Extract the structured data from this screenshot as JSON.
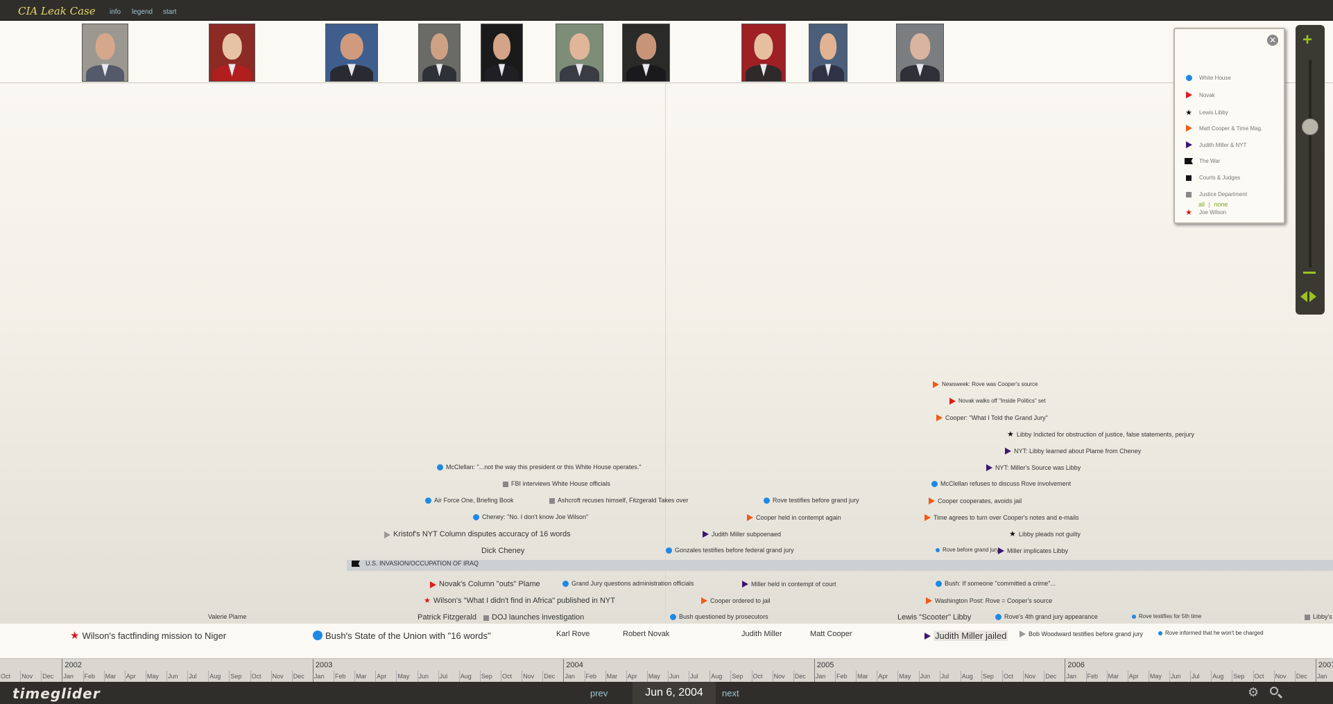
{
  "app": {
    "title": "CIA Leak Case"
  },
  "top_links": [
    {
      "label": "info"
    },
    {
      "label": "legend"
    },
    {
      "label": "start"
    }
  ],
  "people_photos": [
    {
      "name": "Joe Wilson",
      "bg": "#9a9890",
      "skin": "#d5a88c",
      "suit": "#545a6a"
    },
    {
      "name": "Valerie Plame",
      "bg": "#8c2a25",
      "skin": "#e7c3a5",
      "suit": "#b21d1d"
    },
    {
      "name": "George W. Bush",
      "bg": "#3f5e8e",
      "skin": "#cf9b7c",
      "suit": "#2a2a33"
    },
    {
      "name": "Patrick Fitzgerald",
      "bg": "#6a6a66",
      "skin": "#cfa184",
      "suit": "#2e3138"
    },
    {
      "name": "Dick Cheney",
      "bg": "#1a1a1a",
      "skin": "#d3a487",
      "suit": "#1f1f24"
    },
    {
      "name": "Karl Rove",
      "bg": "#7d8d78",
      "skin": "#e0b59a",
      "suit": "#393b45"
    },
    {
      "name": "Robert Novak",
      "bg": "#2a2a28",
      "skin": "#c79478",
      "suit": "#1a1a1c"
    },
    {
      "name": "Judith Miller",
      "bg": "#9e1f24",
      "skin": "#e6bea0",
      "suit": "#2e2a2a"
    },
    {
      "name": "Matt Cooper",
      "bg": "#4b5f7a",
      "skin": "#e1b393",
      "suit": "#2e3244"
    },
    {
      "name": "Lewis Scooter Libby",
      "bg": "#7a7e80",
      "skin": "#d9b4a0",
      "suit": "#303038"
    }
  ],
  "legend": {
    "close_glyph": "✕",
    "items": [
      {
        "label": "White House",
        "icon": "blue-dot-icon"
      },
      {
        "label": "Novak",
        "icon": "red-triangle-icon"
      },
      {
        "label": "Lewis Libby",
        "icon": "black-star-icon"
      },
      {
        "label": "Matt Cooper & Time Mag.",
        "icon": "orange-triangle-icon"
      },
      {
        "label": "Judith Miller & NYT",
        "icon": "purple-triangle-icon"
      },
      {
        "label": "The War",
        "icon": "black-flag-icon"
      },
      {
        "label": "Courts & Judges",
        "icon": "black-square-icon"
      },
      {
        "label": "Justice Department",
        "icon": "grey-square-icon"
      },
      {
        "label": "Joe Wilson",
        "icon": "red-star-icon"
      }
    ],
    "all": "all",
    "sep": "|",
    "none": "none"
  },
  "war_band": {
    "label": "U.S. INVASION/OCCUPATION OF IRAQ"
  },
  "events": [
    {
      "text": "Newsweek: Rove was Cooper's source",
      "icon": "orange-triangle-icon",
      "size": "s7"
    },
    {
      "text": "Novak walks off \"Inside Politics\" set",
      "icon": "red-triangle-icon",
      "size": "s7"
    },
    {
      "text": "Cooper: \"What I Told the Grand Jury\"",
      "icon": "orange-triangle-icon",
      "size": "s9"
    },
    {
      "text": "Libby Indicted for obstruction of justice, false statements, perjury",
      "icon": "black-star-icon",
      "size": "s9"
    },
    {
      "text": "NYT: Libby learned about Plame from Cheney",
      "icon": "purple-triangle-icon",
      "size": "s9"
    },
    {
      "text": "NYT: Miller's Source was Libby",
      "icon": "purple-triangle-icon",
      "size": "s9"
    },
    {
      "text": "McClellan: \"...not the way this president or this White House operates.\"",
      "icon": "blue-dot-icon",
      "size": "s9"
    },
    {
      "text": "FBI interviews White House officials",
      "icon": "grey-square-icon",
      "size": "s9"
    },
    {
      "text": "McClellan refuses to discuss Rove involvement",
      "icon": "blue-dot-icon",
      "size": "s9"
    },
    {
      "text": "Air Force One, Briefing Book",
      "icon": "blue-dot-icon",
      "size": "s9"
    },
    {
      "text": "Ashcroft recuses himself, Fitzgerald Takes over",
      "icon": "grey-square-icon",
      "size": "s9"
    },
    {
      "text": "Rove testifies before grand jury",
      "icon": "blue-dot-icon",
      "size": "s9"
    },
    {
      "text": "Cooper cooperates, avoids jail",
      "icon": "orange-triangle-icon",
      "size": "s9"
    },
    {
      "text": "Cheney: \"No. I don't know Joe Wilson\"",
      "icon": "blue-dot-icon",
      "size": "s9"
    },
    {
      "text": "Cooper held in contempt again",
      "icon": "orange-triangle-icon",
      "size": "s9"
    },
    {
      "text": "Time agrees to turn over Cooper's notes and e-mails",
      "icon": "orange-triangle-icon",
      "size": "s9"
    },
    {
      "text": "Kristof's NYT Column disputes accuracy of 16 words",
      "icon": "grey-triangle-icon",
      "size": "s10"
    },
    {
      "text": "Judith Miller subpoenaed",
      "icon": "purple-triangle-icon",
      "size": "s9"
    },
    {
      "text": "Libby pleads not guilty",
      "icon": "black-star-icon",
      "size": "s9"
    },
    {
      "text": "Dick Cheney",
      "icon": "",
      "size": "s10"
    },
    {
      "text": "Gonzales testifies before federal grand jury",
      "icon": "blue-dot-icon",
      "size": "s9"
    },
    {
      "text": "Rove before grand jury",
      "icon": "blue-dot-icon",
      "size": "s7"
    },
    {
      "text": "Miller implicates Libby",
      "icon": "purple-triangle-icon",
      "size": "s9"
    },
    {
      "text": "Novak's Column \"outs\" Plame",
      "icon": "red-triangle-icon",
      "size": "s10"
    },
    {
      "text": "Grand Jury questions administration officials",
      "icon": "blue-dot-icon",
      "size": "s9"
    },
    {
      "text": "Miller held in contempt of court",
      "icon": "purple-triangle-icon",
      "size": "s9"
    },
    {
      "text": "Bush: If someone \"committed a crime\"...",
      "icon": "blue-dot-icon",
      "size": "s9"
    },
    {
      "text": "Wilson's \"What I didn't find in Africa\" published in NYT",
      "icon": "red-star-icon",
      "size": "s10"
    },
    {
      "text": "Cooper ordered to jail",
      "icon": "orange-triangle-icon",
      "size": "s9"
    },
    {
      "text": "Washington Post: Rove = Cooper's source",
      "icon": "orange-triangle-icon",
      "size": "s9"
    },
    {
      "text": "Valerie Plame",
      "icon": "",
      "size": "s9"
    },
    {
      "text": "Patrick Fitzgerald",
      "icon": "",
      "size": "s10"
    },
    {
      "text": "DOJ launches investigation",
      "icon": "grey-square-icon",
      "size": "s10"
    },
    {
      "text": "Bush questioned by prosecutors",
      "icon": "blue-dot-icon",
      "size": "s9"
    },
    {
      "text": "Lewis \"Scooter\" Libby",
      "icon": "",
      "size": "s10"
    },
    {
      "text": "Rove's 4th grand jury appearance",
      "icon": "blue-dot-icon",
      "size": "s9"
    },
    {
      "text": "Rove testifies for 5th time",
      "icon": "blue-dot-icon",
      "size": "s7"
    },
    {
      "text": "Libby's",
      "icon": "grey-square-icon",
      "size": "s9"
    },
    {
      "text": "Wilson's factfinding mission to Niger",
      "icon": "red-star-icon",
      "size": "s13"
    },
    {
      "text": "Bush's State of the Union with \"16 words\"",
      "icon": "blue-dot-icon",
      "size": "s13"
    },
    {
      "text": "Karl Rove",
      "icon": "",
      "size": "s10"
    },
    {
      "text": "Robert Novak",
      "icon": "",
      "size": "s10"
    },
    {
      "text": "Judith Miller",
      "icon": "",
      "size": "s10"
    },
    {
      "text": "Matt Cooper",
      "icon": "",
      "size": "s10"
    },
    {
      "text": "Judith Miller jailed",
      "icon": "purple-triangle-icon",
      "size": "s13"
    },
    {
      "text": "Bob Woodward testifies before grand jury",
      "icon": "grey-triangle-icon",
      "size": "s9"
    },
    {
      "text": "Rove informed that he won't be charged",
      "icon": "blue-dot-icon",
      "size": "s7"
    }
  ],
  "ruler": {
    "years": [
      "2002",
      "2003",
      "2004",
      "2005",
      "2006",
      "2007"
    ],
    "months": [
      "Oct",
      "Nov",
      "Dec",
      "Jan",
      "Feb",
      "Mar",
      "Apr",
      "May",
      "Jun",
      "Jul",
      "Aug",
      "Sep",
      "Oct",
      "Nov",
      "Dec",
      "Jan",
      "Feb",
      "Mar",
      "Apr",
      "May",
      "Jun",
      "Jul",
      "Aug",
      "Sep",
      "Oct",
      "Nov",
      "Dec",
      "Jan",
      "Feb",
      "Mar",
      "Apr",
      "May",
      "Jun",
      "Jul",
      "Aug",
      "Sep",
      "Oct",
      "Nov",
      "Dec",
      "Jan",
      "Feb",
      "Mar",
      "Apr",
      "May",
      "Jun",
      "Jul",
      "Aug",
      "Sep",
      "Oct",
      "Nov",
      "Dec",
      "Jan",
      "Feb",
      "Mar",
      "Apr",
      "May",
      "Jun",
      "Jul",
      "Aug",
      "Sep",
      "Oct",
      "Nov",
      "Dec",
      "Jan"
    ]
  },
  "footer": {
    "logo": "timeglider",
    "prev": "prev",
    "date": "Jun 6, 2004",
    "next": "next"
  },
  "colors": {
    "white_house": "#1f88e5",
    "novak": "#e01c1c",
    "cooper": "#f05a1a",
    "miller": "#3a1670",
    "accent": "#9dc21f"
  }
}
